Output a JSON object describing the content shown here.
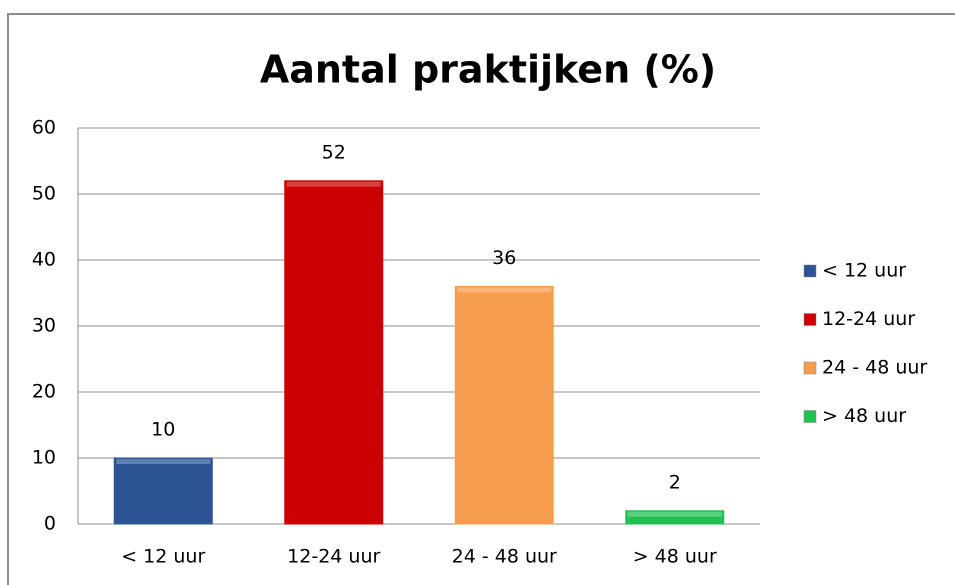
{
  "chart_data": {
    "type": "bar",
    "title": "Aantal praktijken (%)",
    "categories": [
      "< 12 uur",
      "12-24 uur",
      "24 - 48 uur",
      "> 48 uur"
    ],
    "values": [
      10,
      52,
      36,
      2
    ],
    "colors": [
      "#2b5393",
      "#cc0000",
      "#f79d4f",
      "#22c050"
    ],
    "ylim": [
      0,
      60
    ],
    "yticks": [
      0,
      10,
      20,
      30,
      40,
      50,
      60
    ],
    "grid": true,
    "legend": "right"
  }
}
